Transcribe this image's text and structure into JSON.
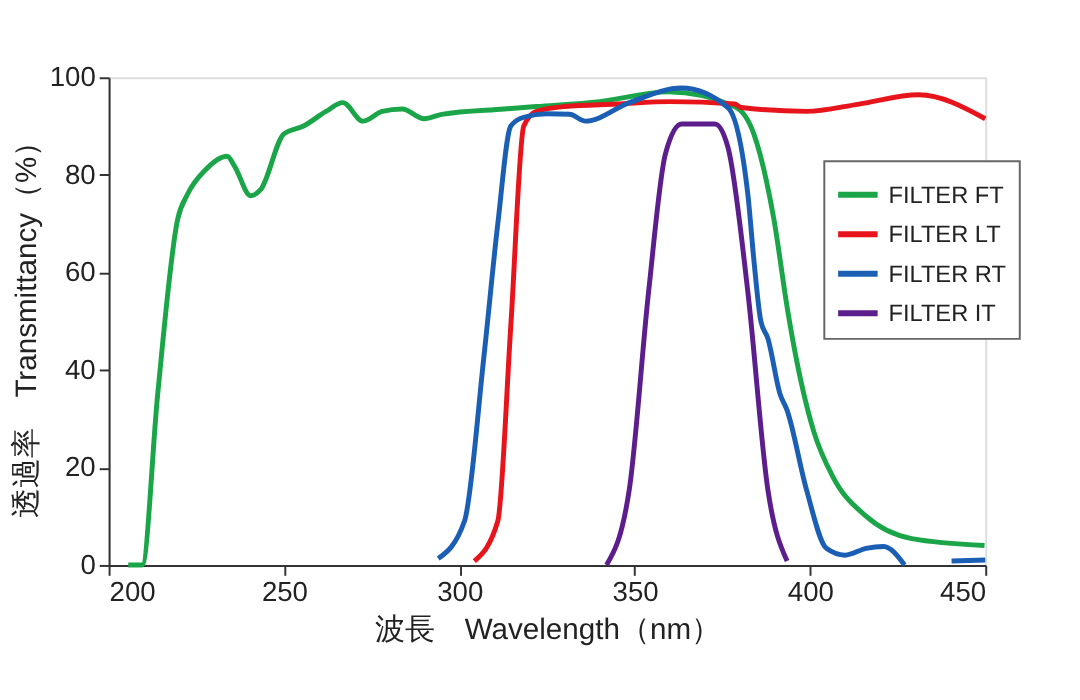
{
  "chart_data": {
    "type": "line",
    "xlabel": "波長　Wavelength（nm）",
    "ylabel": "透過率　Transmittancy（%）",
    "xlim": [
      200,
      450
    ],
    "xticks": [
      200,
      250,
      300,
      350,
      400,
      450
    ],
    "ylim": [
      0,
      100
    ],
    "yticks": [
      0,
      20,
      40,
      60,
      80,
      100
    ],
    "grid": false,
    "legend": "right",
    "line_style": "solid",
    "marker": "none",
    "series": [
      {
        "name": "FILTER FT",
        "color": "#1aa548",
        "x": [
          205.6,
          209.6,
          214,
          219.7,
          222.5,
          227.6,
          233.8,
          235.9,
          240.5,
          243.4,
          250,
          255.6,
          262,
          266.8,
          272.5,
          278,
          283.7,
          290,
          295,
          312.8,
          322,
          340,
          359.7,
          378.5,
          384,
          389.7,
          393.7,
          395.4,
          401,
          406.6,
          416,
          429,
          449.8
        ],
        "values": [
          0,
          0,
          35,
          70.9,
          76,
          81,
          83.8,
          81.8,
          75.7,
          77,
          88.4,
          90,
          93,
          94.8,
          91,
          93,
          93.5,
          91.5,
          92.4,
          93.5,
          94,
          95,
          97,
          94,
          88.4,
          71,
          52,
          45,
          27.6,
          18,
          10,
          5.4,
          4
        ]
      },
      {
        "name": "FILTER LT",
        "color": "#e8141c",
        "x": [
          304.3,
          311,
          314.7,
          318.4,
          322,
          330,
          345,
          360,
          378.5,
          380.4,
          399,
          414,
          431,
          450
        ],
        "values": [
          0.8,
          9,
          49,
          90,
          93,
          94,
          94.5,
          95,
          94.5,
          93.8,
          93,
          94.5,
          96.4,
          91.5
        ]
      },
      {
        "name": "FILTER RT",
        "color": "#1a5fb4",
        "x": [
          294,
          301.5,
          307,
          311,
          314.7,
          318.4,
          325,
          331.5,
          336,
          348.5,
          363.4,
          376.6,
          382.3,
          384,
          386,
          388,
          391.5,
          393.5,
          399,
          404.7,
          410,
          416,
          421,
          427,
          432,
          440.4,
          450
        ],
        "values": [
          1.3,
          9,
          42.5,
          70,
          90,
          91.8,
          92.5,
          92.4,
          91,
          94.8,
          97.8,
          93.8,
          76,
          62.7,
          50,
          46.5,
          35,
          31.7,
          15.5,
          3.4,
          2,
          3.4,
          3.8,
          0,
          null,
          0.8,
          1
        ]
      },
      {
        "name": "FILTER IT",
        "color": "#5b1e8c",
        "x": [
          342,
          348.5,
          354,
          358.8,
          363.4,
          372.9,
          376.6,
          382.3,
          388,
          393.5
        ],
        "values": [
          0,
          15.5,
          56,
          84.3,
          90.4,
          90.4,
          85.7,
          56,
          15.5,
          0.8
        ]
      }
    ]
  }
}
